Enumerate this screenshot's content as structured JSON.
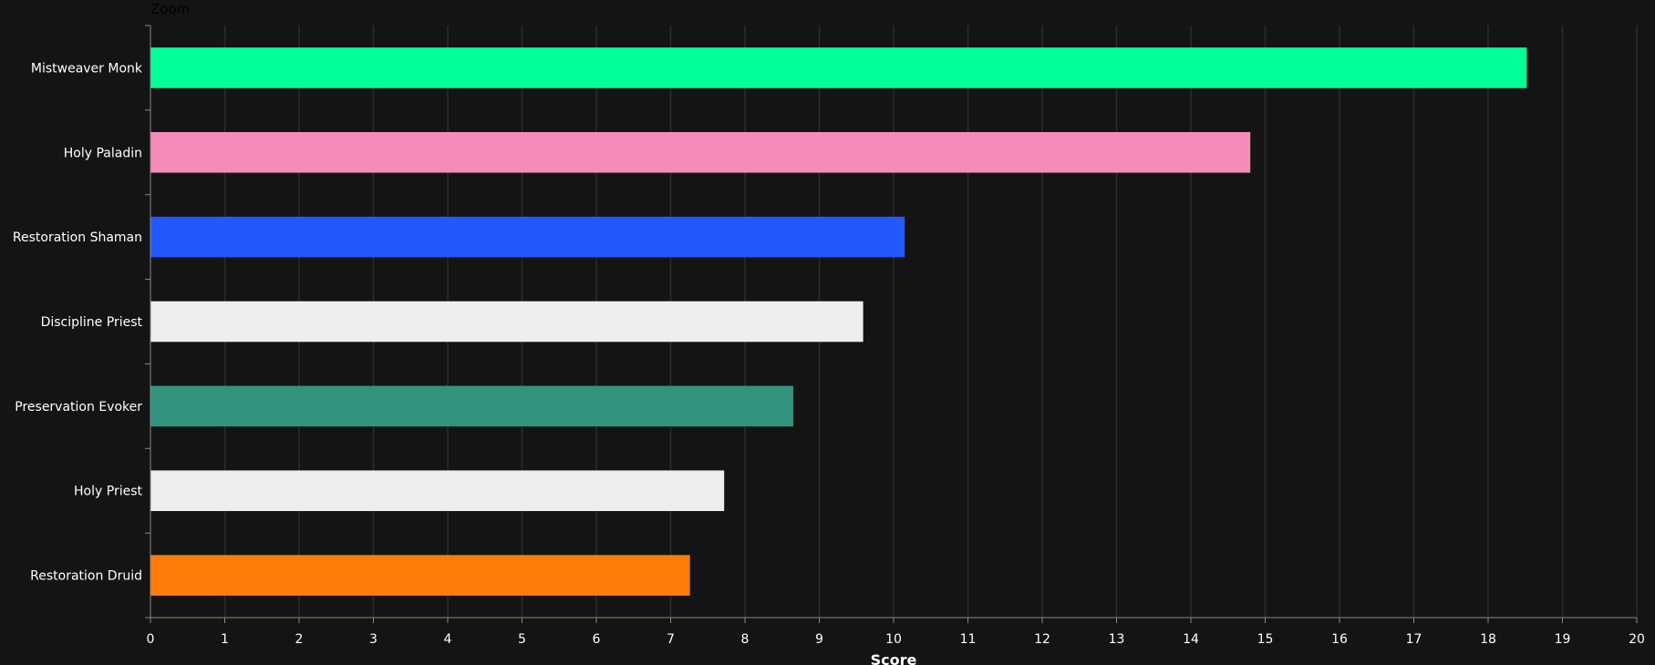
{
  "toolbar": {
    "zoom_label": "Zoom"
  },
  "colors": {
    "background": "#141414",
    "grid": "#2c2c2c",
    "axis": "#8a8a8a",
    "text": "#ffffff"
  },
  "chart_data": {
    "type": "bar",
    "orientation": "horizontal",
    "title": "",
    "xlabel": "Score",
    "ylabel": "",
    "xlim": [
      0,
      20
    ],
    "x_ticks": [
      0,
      1,
      2,
      3,
      4,
      5,
      6,
      7,
      8,
      9,
      10,
      11,
      12,
      13,
      14,
      15,
      16,
      17,
      18,
      19,
      20
    ],
    "grid": true,
    "legend": "none",
    "categories": [
      "Mistweaver Monk",
      "Holy Paladin",
      "Restoration Shaman",
      "Discipline Priest",
      "Preservation Evoker",
      "Holy Priest",
      "Restoration Druid"
    ],
    "values": [
      18.52,
      14.8,
      10.15,
      9.59,
      8.65,
      7.72,
      7.26
    ],
    "bar_colors": [
      "#00ff98",
      "#f48cba",
      "#2458ff",
      "#eeeeee",
      "#33937f",
      "#eeeeee",
      "#ff7c0a"
    ]
  }
}
